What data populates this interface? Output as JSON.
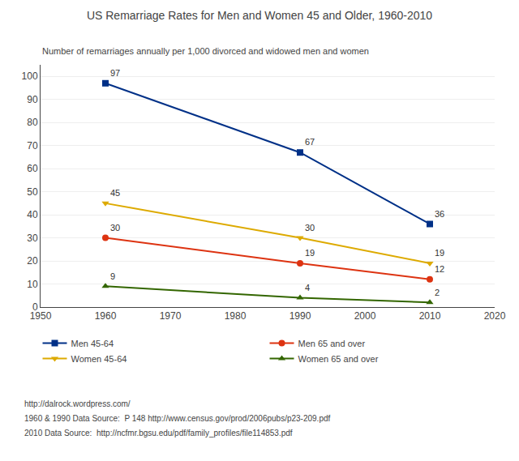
{
  "chart_data": {
    "type": "line",
    "title": "US Remarriage Rates for Men and Women 45 and Older, 1960-2010",
    "subtitle": "Number of remarriages annually per 1,000 divorced and widowed men and women",
    "x": [
      1960,
      1990,
      2010
    ],
    "series": [
      {
        "name": "Men 45-64",
        "color": "#003087",
        "marker": "square",
        "values": [
          97,
          67,
          36
        ]
      },
      {
        "name": "Men 65 and over",
        "color": "#dd3311",
        "marker": "circle",
        "values": [
          30,
          19,
          12
        ]
      },
      {
        "name": "Women 45-64",
        "color": "#ddaa00",
        "marker": "triangle-down",
        "values": [
          45,
          30,
          19
        ]
      },
      {
        "name": "Women 65 and over",
        "color": "#336600",
        "marker": "triangle-up",
        "values": [
          9,
          4,
          2
        ]
      }
    ],
    "xlim": [
      1950,
      2020
    ],
    "xticks": [
      1950,
      1960,
      1970,
      1980,
      1990,
      2000,
      2010,
      2020
    ],
    "ylim": [
      0,
      105
    ],
    "yticks": [
      0,
      10,
      20,
      30,
      40,
      50,
      60,
      70,
      80,
      90,
      100
    ],
    "grid": "y",
    "legend": "bottom",
    "data_labels": true,
    "annotations": [
      "http://dalrock.wordpress.com/",
      "1960 & 1990 Data Source:  P 148 http://www.census.gov/prod/2006pubs/p23-209.pdf",
      "2010 Data Source:  http://ncfmr.bgsu.edu/pdf/family_profiles/file114853.pdf"
    ]
  }
}
